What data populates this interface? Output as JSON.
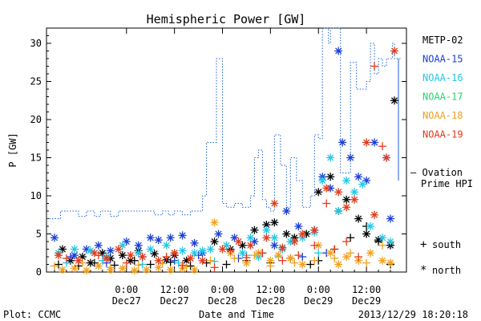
{
  "chart_data": {
    "type": "scatter",
    "title": "Hemispheric Power [GW]",
    "ylabel": "P [GW]",
    "xlabel": "Date and Time",
    "footer_left": "Plot: CCMC",
    "footer_right": "2013/12/29 18:20:18",
    "ylim": [
      0,
      32
    ],
    "xlim_hours": [
      -20,
      70
    ],
    "y_ticks": [
      0,
      5,
      10,
      15,
      20,
      25,
      30
    ],
    "x_ticks": [
      {
        "hour": 0,
        "time": "0:00",
        "date": "Dec27"
      },
      {
        "hour": 12,
        "time": "12:00",
        "date": "Dec27"
      },
      {
        "hour": 24,
        "time": "0:00",
        "date": "Dec28"
      },
      {
        "hour": 36,
        "time": "12:00",
        "date": "Dec28"
      },
      {
        "hour": 48,
        "time": "0:00",
        "date": "Dec29"
      },
      {
        "hour": 60,
        "time": "12:00",
        "date": "Dec29"
      }
    ],
    "legend": [
      {
        "name": "METP-02",
        "color": "#000000"
      },
      {
        "name": "NOAA-15",
        "color": "#1a3fd6"
      },
      {
        "name": "NOAA-16",
        "color": "#22c6e6"
      },
      {
        "name": "NOAA-17",
        "color": "#22d86a"
      },
      {
        "name": "NOAA-18",
        "color": "#f0a020"
      },
      {
        "name": "NOAA-19",
        "color": "#e23a1a"
      }
    ],
    "ovation_label": [
      "— Ovation",
      "Prime HPI"
    ],
    "ovation_color": "#1a5fd6",
    "marker_legend": [
      {
        "symbol": "+",
        "label": "south"
      },
      {
        "symbol": "*",
        "label": "north"
      }
    ],
    "ovation_steps": [
      [
        -20.5,
        7
      ],
      [
        -16.5,
        8
      ],
      [
        -12,
        7.3
      ],
      [
        -10,
        8
      ],
      [
        -8,
        7.3
      ],
      [
        -6.5,
        8
      ],
      [
        -4,
        7.3
      ],
      [
        -2,
        8
      ],
      [
        7,
        7.5
      ],
      [
        9,
        8
      ],
      [
        10.5,
        7.5
      ],
      [
        12,
        8
      ],
      [
        14,
        7.5
      ],
      [
        16,
        8
      ],
      [
        19,
        10
      ],
      [
        20,
        17
      ],
      [
        22.5,
        28
      ],
      [
        24,
        9
      ],
      [
        25,
        8.5
      ],
      [
        27,
        9
      ],
      [
        29,
        8.5
      ],
      [
        31,
        10
      ],
      [
        32,
        15
      ],
      [
        33,
        16
      ],
      [
        34,
        9.5
      ],
      [
        35,
        8.5
      ],
      [
        36,
        8
      ],
      [
        37,
        18
      ],
      [
        38.5,
        14
      ],
      [
        40,
        8.5
      ],
      [
        41,
        15
      ],
      [
        42.5,
        12
      ],
      [
        44,
        8.5
      ],
      [
        46,
        10
      ],
      [
        47,
        18
      ],
      [
        48,
        17.5
      ],
      [
        49,
        32
      ],
      [
        50.5,
        30
      ],
      [
        51,
        32
      ],
      [
        53.5,
        13
      ],
      [
        56,
        27.5
      ],
      [
        57.5,
        24
      ],
      [
        60,
        25
      ],
      [
        61,
        30
      ],
      [
        62,
        26
      ],
      [
        63,
        28
      ],
      [
        64,
        27
      ],
      [
        65,
        28
      ],
      [
        66.5,
        30
      ],
      [
        67,
        28
      ],
      [
        68,
        28
      ]
    ],
    "series": [
      {
        "name": "METP-02",
        "color": "#000000",
        "points": [
          [
            -16,
            3
          ],
          [
            -14,
            1.5
          ],
          [
            -11,
            2
          ],
          [
            -9,
            1.2
          ],
          [
            -6,
            2.5
          ],
          [
            -4,
            1.8
          ],
          [
            -1,
            2.2
          ],
          [
            1,
            1.5
          ],
          [
            3,
            2.8
          ],
          [
            7,
            2.4
          ],
          [
            10,
            1.6
          ],
          [
            12,
            2.2
          ],
          [
            15,
            1.5
          ],
          [
            22,
            4
          ],
          [
            26,
            3
          ],
          [
            29,
            3.5
          ],
          [
            32,
            5.5
          ],
          [
            35,
            6.2
          ],
          [
            37,
            6.5
          ],
          [
            40,
            5
          ],
          [
            42,
            4.5
          ],
          [
            45,
            5
          ],
          [
            48,
            10.5
          ],
          [
            51,
            12.5
          ],
          [
            53,
            8
          ],
          [
            55,
            9.5
          ],
          [
            58,
            7
          ],
          [
            60,
            5
          ],
          [
            63,
            4.2
          ],
          [
            66,
            3.5
          ],
          [
            67,
            22.5
          ]
        ],
        "pluses": [
          [
            -17,
            1
          ],
          [
            -12,
            0.8
          ],
          [
            -8,
            1.2
          ],
          [
            -3,
            0.9
          ],
          [
            2,
            1.5
          ],
          [
            6,
            1
          ],
          [
            11,
            1.3
          ],
          [
            16,
            0.8
          ],
          [
            20,
            1.2
          ],
          [
            25,
            1
          ],
          [
            30,
            1.5
          ],
          [
            36,
            1.2
          ],
          [
            41,
            1.8
          ],
          [
            46,
            1
          ],
          [
            48,
            1.5
          ],
          [
            52,
            3
          ],
          [
            56,
            4.5
          ],
          [
            60,
            6
          ],
          [
            63,
            4
          ],
          [
            66,
            1
          ]
        ]
      },
      {
        "name": "NOAA-15",
        "color": "#1a3fd6",
        "points": [
          [
            -18,
            4.5
          ],
          [
            -13,
            2.2
          ],
          [
            -10,
            3
          ],
          [
            -7,
            3.5
          ],
          [
            -4,
            2.8
          ],
          [
            0,
            4
          ],
          [
            3,
            3.5
          ],
          [
            6,
            4.5
          ],
          [
            8,
            4.2
          ],
          [
            11,
            4.5
          ],
          [
            14,
            4.8
          ],
          [
            17,
            3.8
          ],
          [
            19,
            2.5
          ],
          [
            23,
            5
          ],
          [
            27,
            4.5
          ],
          [
            32,
            4
          ],
          [
            37,
            3.5
          ],
          [
            40,
            8
          ],
          [
            43,
            6
          ],
          [
            47,
            5.5
          ],
          [
            49,
            12.5
          ],
          [
            51,
            11
          ],
          [
            53,
            29
          ],
          [
            54,
            17
          ],
          [
            56,
            15
          ],
          [
            58,
            12.5
          ],
          [
            60,
            12
          ],
          [
            62,
            17
          ],
          [
            65,
            15
          ],
          [
            66,
            7
          ]
        ],
        "pluses": [
          [
            -14,
            2
          ],
          [
            -5,
            1.2
          ],
          [
            4,
            2
          ],
          [
            12,
            1.5
          ],
          [
            18,
            2.2
          ],
          [
            28,
            1.8
          ],
          [
            34,
            2.5
          ],
          [
            44,
            2
          ],
          [
            50,
            2.5
          ]
        ]
      },
      {
        "name": "NOAA-16",
        "color": "#22c6e6",
        "points": [
          [
            -17,
            2.5
          ],
          [
            -13,
            3
          ],
          [
            -9,
            2.8
          ],
          [
            -5,
            2
          ],
          [
            -1,
            3.5
          ],
          [
            3,
            2.5
          ],
          [
            6,
            3
          ],
          [
            10,
            3.5
          ],
          [
            14,
            2.8
          ],
          [
            17,
            2.5
          ],
          [
            19,
            2.8
          ],
          [
            21,
            3
          ],
          [
            25,
            3.5
          ],
          [
            29,
            2.5
          ],
          [
            31,
            4.5
          ],
          [
            33,
            2
          ],
          [
            35,
            5.5
          ],
          [
            37,
            4.5
          ],
          [
            39,
            3
          ],
          [
            41,
            4
          ],
          [
            44,
            4.5
          ],
          [
            47,
            5.2
          ],
          [
            49,
            12
          ],
          [
            51,
            15
          ],
          [
            53,
            8
          ],
          [
            55,
            12
          ],
          [
            57,
            10.5
          ],
          [
            59,
            11.5
          ],
          [
            61,
            6
          ],
          [
            64,
            4.5
          ],
          [
            66,
            4
          ]
        ],
        "pluses": [
          [
            -15,
            1.2
          ],
          [
            -6,
            1.5
          ],
          [
            4,
            1
          ],
          [
            13,
            1.2
          ],
          [
            22,
            1.4
          ],
          [
            30,
            2.2
          ],
          [
            38,
            2
          ],
          [
            48,
            2.5
          ]
        ]
      },
      {
        "name": "NOAA-18",
        "color": "#f0a020",
        "points": [
          [
            -16,
            0.3
          ],
          [
            -13,
            0.5
          ],
          [
            -10,
            0.2
          ],
          [
            -7,
            0.8
          ],
          [
            -4,
            0.3
          ],
          [
            -1,
            0.5
          ],
          [
            2,
            0.2
          ],
          [
            5,
            0.3
          ],
          [
            8,
            0.6
          ],
          [
            11,
            0.3
          ],
          [
            14,
            0.5
          ],
          [
            17,
            0.3
          ],
          [
            22,
            6.5
          ],
          [
            26,
            2.5
          ],
          [
            30,
            1.2
          ],
          [
            33,
            2.5
          ],
          [
            36,
            1.5
          ],
          [
            38,
            2.2
          ],
          [
            41,
            1.8
          ],
          [
            44,
            1
          ],
          [
            48,
            3.5
          ],
          [
            51,
            2.5
          ],
          [
            53,
            1
          ],
          [
            55,
            2
          ],
          [
            58,
            1.5
          ],
          [
            61,
            2.5
          ],
          [
            64,
            1.5
          ],
          [
            66,
            1.2
          ]
        ],
        "pluses": [
          [
            -18,
            0.8
          ],
          [
            -11,
            1.2
          ],
          [
            -4,
            0.6
          ],
          [
            3,
            0.9
          ],
          [
            9,
            1.1
          ],
          [
            15,
            0.7
          ],
          [
            21,
            1.5
          ],
          [
            27,
            1.8
          ],
          [
            32,
            2.2
          ],
          [
            36,
            0.8
          ],
          [
            42,
            1.2
          ],
          [
            47,
            1.5
          ],
          [
            52,
            1.8
          ],
          [
            56,
            2.5
          ],
          [
            60,
            1.2
          ],
          [
            64,
            3.5
          ]
        ]
      },
      {
        "name": "NOAA-19",
        "color": "#e23a1a",
        "points": [
          [
            -17,
            2.2
          ],
          [
            -12,
            1.5
          ],
          [
            -8,
            2.5
          ],
          [
            -5,
            1.8
          ],
          [
            -2,
            3
          ],
          [
            1,
            2.2
          ],
          [
            4,
            2
          ],
          [
            8,
            1.5
          ],
          [
            12,
            2.5
          ],
          [
            16,
            1.8
          ],
          [
            19,
            1.5
          ],
          [
            24,
            3
          ],
          [
            28,
            4
          ],
          [
            31,
            3.5
          ],
          [
            35,
            4.5
          ],
          [
            37,
            9
          ],
          [
            39,
            3.2
          ],
          [
            42,
            4
          ],
          [
            44,
            5
          ],
          [
            47,
            5.5
          ],
          [
            50,
            11
          ],
          [
            53,
            10.5
          ],
          [
            55,
            8.5
          ],
          [
            57,
            9.5
          ],
          [
            60,
            17
          ],
          [
            62,
            7.5
          ],
          [
            65,
            15
          ],
          [
            67,
            29
          ]
        ],
        "pluses": [
          [
            -15,
            1.8
          ],
          [
            -7,
            2.2
          ],
          [
            0,
            1.2
          ],
          [
            10,
            2
          ],
          [
            14,
            0.9
          ],
          [
            22,
            0.6
          ],
          [
            26,
            2.8
          ],
          [
            30,
            1.9
          ],
          [
            34,
            2.5
          ],
          [
            39,
            1.5
          ],
          [
            43,
            2.2
          ],
          [
            47,
            3.5
          ],
          [
            50,
            9
          ],
          [
            52,
            3
          ],
          [
            55,
            4
          ],
          [
            58,
            2
          ],
          [
            62,
            27
          ],
          [
            64,
            16.5
          ]
        ]
      }
    ]
  }
}
